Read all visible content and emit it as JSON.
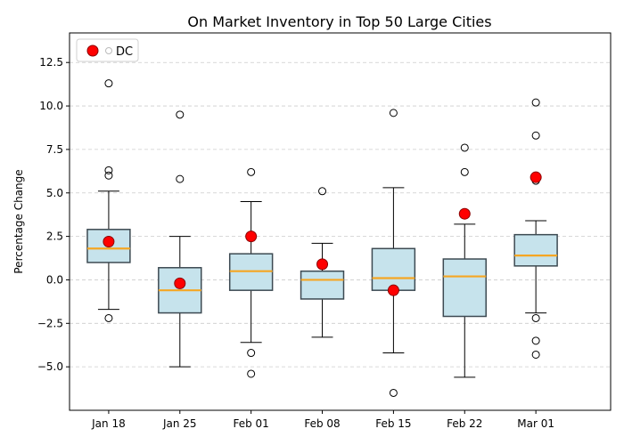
{
  "chart_data": {
    "type": "box",
    "title": "On Market Inventory in Top 50 Large Cities",
    "xlabel": "",
    "ylabel": "Percentage Change",
    "ylim": [
      -7.5,
      14.2
    ],
    "yticks": [
      -5.0,
      -2.5,
      0.0,
      2.5,
      5.0,
      7.5,
      10.0,
      12.5
    ],
    "ytick_labels": [
      "−5.0",
      "−2.5",
      "0.0",
      "2.5",
      "5.0",
      "7.5",
      "10.0",
      "12.5"
    ],
    "grid": "horizontal-dashed",
    "legend_position": "top-left",
    "legend_label": "DC",
    "categories": [
      "Jan 18",
      "Jan 25",
      "Feb 01",
      "Feb 08",
      "Feb 15",
      "Feb 22",
      "Mar 01"
    ],
    "boxes": [
      {
        "whisker_low": -1.7,
        "q1": 1.0,
        "median": 1.8,
        "q3": 2.9,
        "whisker_high": 5.1,
        "outliers": [
          11.3,
          6.3,
          6.0,
          -2.2
        ]
      },
      {
        "whisker_low": -5.0,
        "q1": -1.9,
        "median": -0.6,
        "q3": 0.7,
        "whisker_high": 2.5,
        "outliers": [
          9.5,
          5.8
        ]
      },
      {
        "whisker_low": -3.6,
        "q1": -0.6,
        "median": 0.5,
        "q3": 1.5,
        "whisker_high": 4.5,
        "outliers": [
          6.2,
          -4.2,
          -5.4
        ]
      },
      {
        "whisker_low": -3.3,
        "q1": -1.1,
        "median": 0.0,
        "q3": 0.5,
        "whisker_high": 2.1,
        "outliers": [
          5.1
        ]
      },
      {
        "whisker_low": -4.2,
        "q1": -0.6,
        "median": 0.1,
        "q3": 1.8,
        "whisker_high": 5.3,
        "outliers": [
          9.6,
          -6.5
        ]
      },
      {
        "whisker_low": -5.6,
        "q1": -2.1,
        "median": 0.2,
        "q3": 1.2,
        "whisker_high": 3.2,
        "outliers": [
          7.6,
          6.2
        ]
      },
      {
        "whisker_low": -1.9,
        "q1": 0.8,
        "median": 1.4,
        "q3": 2.6,
        "whisker_high": 3.4,
        "outliers": [
          10.2,
          8.3,
          5.7,
          -2.2,
          -3.5,
          -4.3
        ]
      }
    ],
    "dc_values": [
      2.2,
      -0.2,
      2.5,
      0.9,
      -0.6,
      3.8,
      5.9
    ],
    "colors": {
      "box_fill": "#c6e3ec",
      "box_edge": "#3d4a52",
      "median": "#f5a623",
      "dc_fill": "#ff0000",
      "dc_edge": "#8b0000",
      "grid": "#cccccc"
    }
  }
}
